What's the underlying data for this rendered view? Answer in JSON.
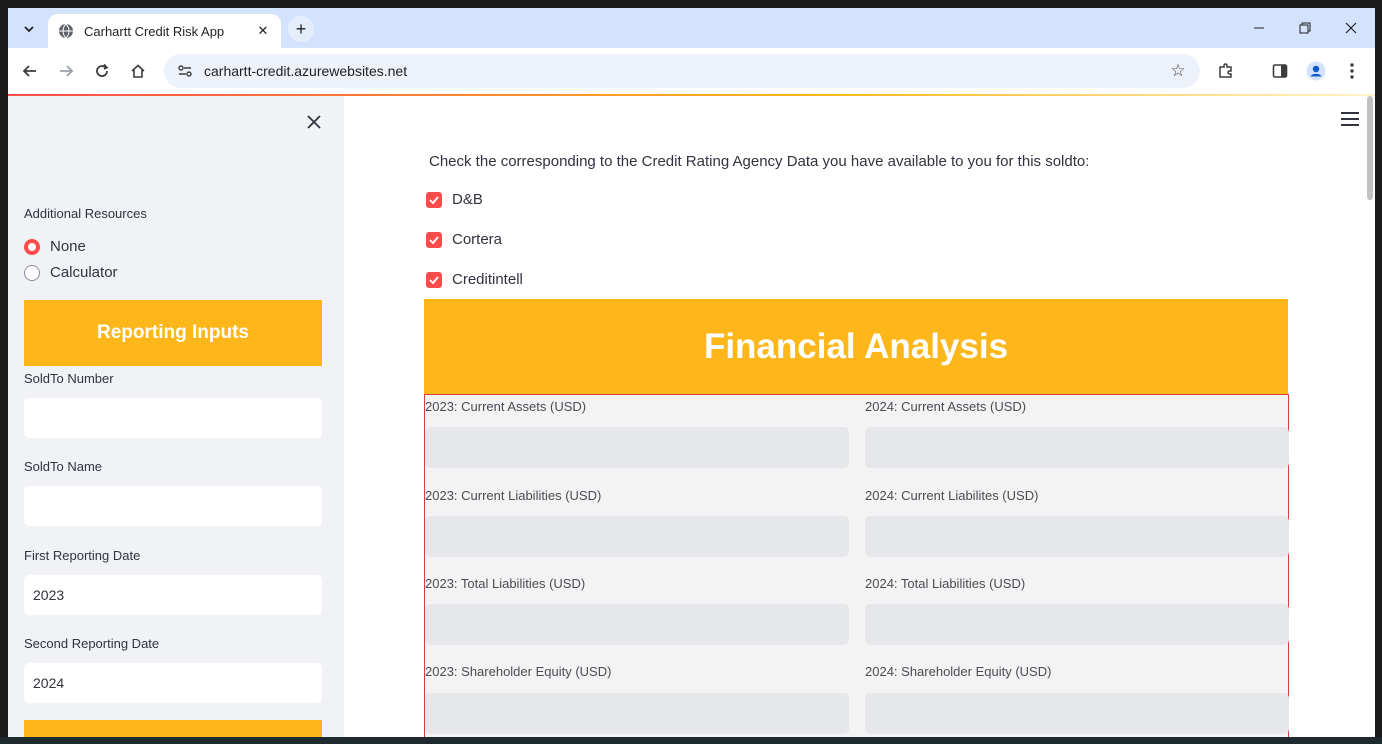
{
  "browser": {
    "tab_title": "Carhartt Credit Risk App",
    "url": "carhartt-credit.azurewebsites.net"
  },
  "sidebar": {
    "resources_label": "Additional Resources",
    "radio_options": [
      "None",
      "Calculator"
    ],
    "selected_option": "None",
    "reporting_inputs_label": "Reporting Inputs",
    "soldto_number_label": "SoldTo Number",
    "soldto_number_value": "",
    "soldto_name_label": "SoldTo Name",
    "soldto_name_value": "",
    "first_date_label": "First Reporting Date",
    "first_date_value": "2023",
    "second_date_label": "Second Reporting Date",
    "second_date_value": "2024"
  },
  "main": {
    "instruction": "Check the corresponding to the Credit Rating Agency Data you have available to you for this soldto:",
    "checkboxes": [
      {
        "label": "D&B",
        "checked": true
      },
      {
        "label": "Cortera",
        "checked": true
      },
      {
        "label": "Creditintell",
        "checked": true
      }
    ],
    "section_title": "Financial Analysis",
    "fields": [
      [
        "2023: Current Assets (USD)",
        "2024: Current Assets (USD)"
      ],
      [
        "2023: Current Liabilities (USD)",
        "2024: Current Liabilites (USD)"
      ],
      [
        "2023: Total Liabilities (USD)",
        "2024: Total Liabilities (USD)"
      ],
      [
        "2023: Shareholder Equity (USD)",
        "2024: Shareholder Equity (USD)"
      ]
    ]
  },
  "colors": {
    "accent": "#fdb71a",
    "primary": "#ff4b4b"
  }
}
